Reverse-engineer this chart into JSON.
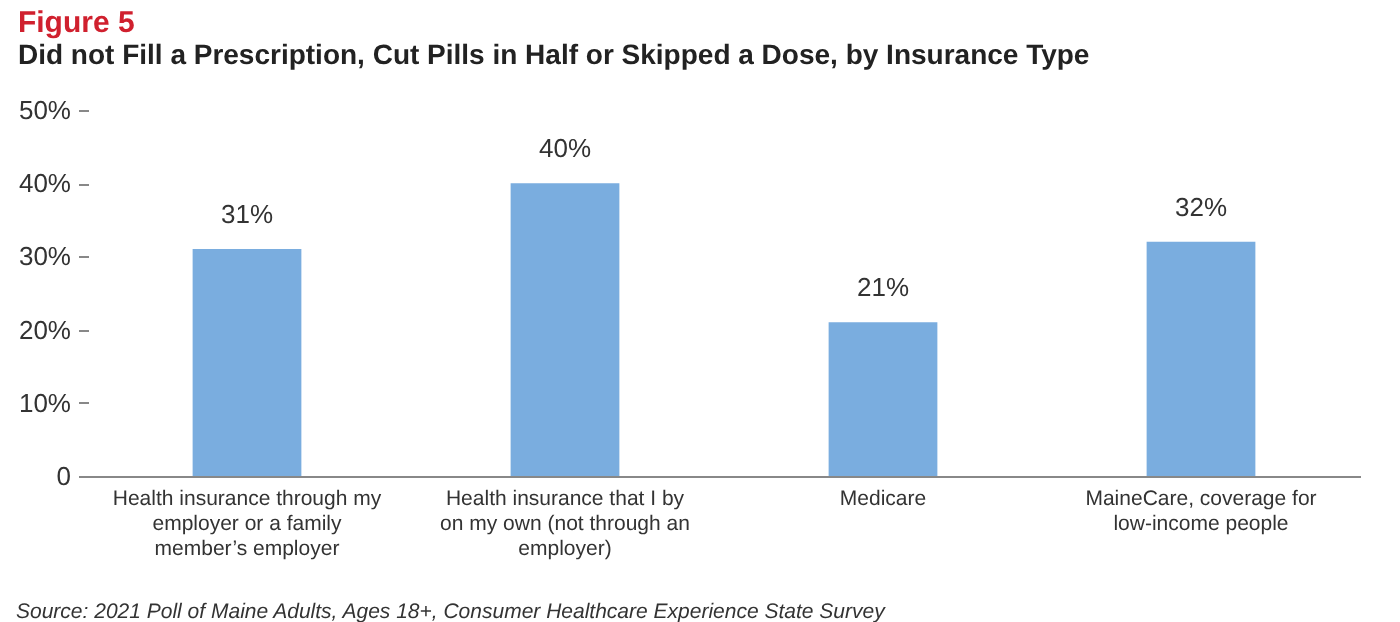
{
  "chart_data": {
    "type": "bar",
    "title": "Figure 5",
    "subtitle": "Did not Fill a Prescription, Cut Pills in Half or Skipped a Dose, by Insurance Type",
    "categories": [
      "Health insurance through my employer or a family member’s employer",
      "Health insurance that I by on my own (not through an employer)",
      "Medicare",
      "MaineCare, coverage for low-income people"
    ],
    "values": [
      31,
      40,
      21,
      32
    ],
    "value_labels": [
      "31%",
      "40%",
      "21%",
      "32%"
    ],
    "color": "#7aaddf",
    "ylim": [
      0,
      50
    ],
    "yticks": [
      0,
      {
        "value": 10,
        "label": "10%"
      },
      {
        "value": 20,
        "label": "20%"
      },
      {
        "value": 30,
        "label": "30%"
      },
      {
        "value": 40,
        "label": "40%"
      },
      {
        "value": 50,
        "label": "50%"
      }
    ],
    "grid": false,
    "annotations": [
      "Source: 2021 Poll of Maine Adults, Ages 18+, Consumer Healthcare Experience State Survey"
    ]
  }
}
